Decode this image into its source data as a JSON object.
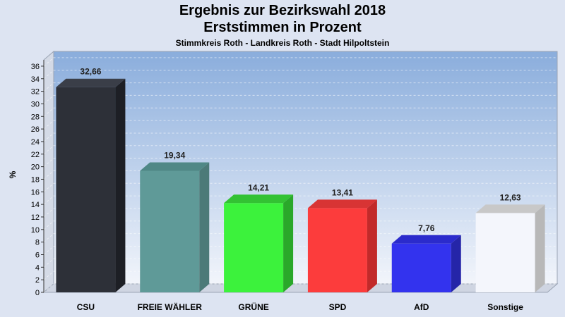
{
  "header": {
    "title": "Ergebnis zur Bezirkswahl 2018",
    "subtitle": "Erststimmen in Prozent",
    "caption": "Stimmkreis Roth - Landkreis Roth - Stadt Hilpoltstein"
  },
  "chart_data": {
    "type": "bar",
    "title": "Ergebnis zur Bezirkswahl 2018",
    "subtitle": "Erststimmen in Prozent",
    "ylabel": "%",
    "xlabel": "",
    "ylim": [
      0,
      37
    ],
    "yticks": [
      0,
      2,
      4,
      6,
      8,
      10,
      12,
      14,
      16,
      18,
      20,
      22,
      24,
      26,
      28,
      30,
      32,
      34,
      36
    ],
    "grid": true,
    "categories": [
      "CSU",
      "FREIE WÄHLER",
      "GRÜNE",
      "SPD",
      "AfD",
      "Sonstige"
    ],
    "values": [
      32.66,
      19.34,
      14.21,
      13.41,
      7.76,
      12.63
    ],
    "value_labels": [
      "32,66",
      "19,34",
      "14,21",
      "13,41",
      "7,76",
      "12,63"
    ],
    "colors": [
      "#2d3038",
      "#5f9a98",
      "#3cf23c",
      "#fc3c3c",
      "#3333ee",
      "#f4f6fc"
    ],
    "side_colors": [
      "#1d1f25",
      "#4c7a78",
      "#2aa82a",
      "#c22a2a",
      "#2525a8",
      "#b8b8b8"
    ],
    "top_colors": [
      "#3a3e48",
      "#508886",
      "#33c233",
      "#d83434",
      "#2b2bcc",
      "#c8c8c8"
    ]
  }
}
